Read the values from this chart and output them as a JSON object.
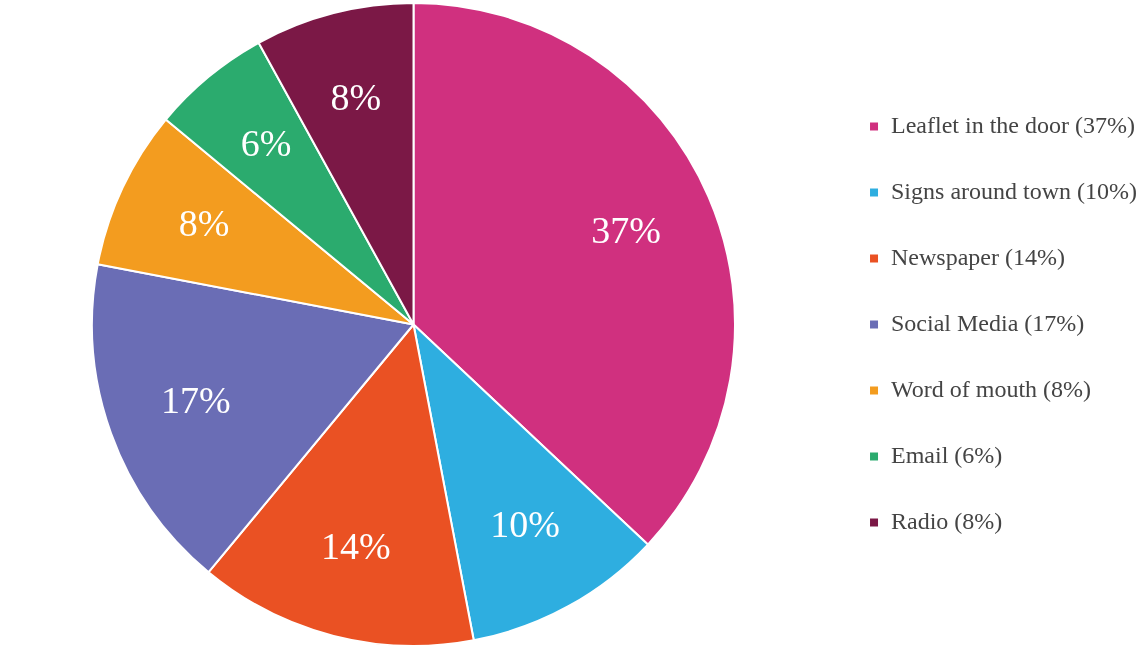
{
  "chart_data": {
    "type": "pie",
    "categories": [
      "Leaflet in the door (37%)",
      "Signs around town (10%)",
      "Newspaper (14%)",
      "Social Media (17%)",
      "Word of mouth (8%)",
      "Email (6%)",
      "Radio (8%)"
    ],
    "values": [
      37,
      10,
      14,
      17,
      8,
      6,
      8
    ],
    "colors": [
      "#d0307f",
      "#2eaee0",
      "#ea5123",
      "#6a6db5",
      "#f39c1f",
      "#2bab6e",
      "#7b1846"
    ],
    "value_labels": [
      "37%",
      "10%",
      "14%",
      "17%",
      "8%",
      "6%",
      "8%"
    ],
    "legend": "right"
  }
}
